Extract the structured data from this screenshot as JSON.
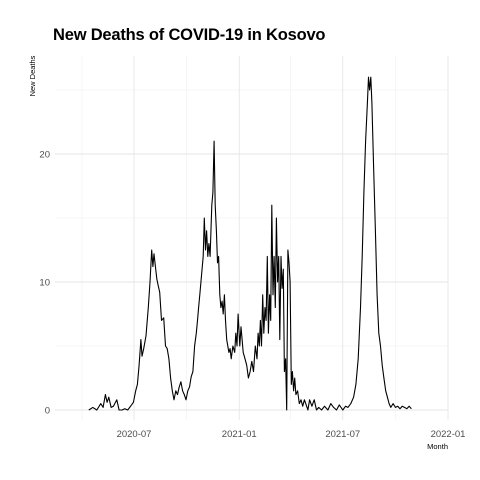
{
  "chart_data": {
    "type": "line",
    "title": "New Deaths of COVID-19 in Kosovo",
    "xlabel": "Month",
    "ylabel": "New Deaths",
    "xlim": [
      "2020-04-01",
      "2022-01-01"
    ],
    "ylim": [
      0,
      26
    ],
    "x_ticks": [
      "2020-07",
      "2021-01",
      "2021-07",
      "2022-01"
    ],
    "y_ticks": [
      0,
      10,
      20
    ],
    "grid": true,
    "line_color": "#000000",
    "series": [
      {
        "points": [
          [
            "2020-04-13",
            0
          ],
          [
            "2020-04-20",
            0.2
          ],
          [
            "2020-04-27",
            0
          ],
          [
            "2020-05-04",
            0.5
          ],
          [
            "2020-05-08",
            0.2
          ],
          [
            "2020-05-12",
            1.2
          ],
          [
            "2020-05-15",
            0.6
          ],
          [
            "2020-05-18",
            1
          ],
          [
            "2020-05-22",
            0.2
          ],
          [
            "2020-05-26",
            0.3
          ],
          [
            "2020-06-01",
            0.8
          ],
          [
            "2020-06-05",
            0
          ],
          [
            "2020-06-10",
            0
          ],
          [
            "2020-06-15",
            0.1
          ],
          [
            "2020-06-20",
            0
          ],
          [
            "2020-06-25",
            0.3
          ],
          [
            "2020-06-30",
            0.6
          ],
          [
            "2020-07-04",
            1.5
          ],
          [
            "2020-07-07",
            2
          ],
          [
            "2020-07-10",
            3.5
          ],
          [
            "2020-07-13",
            5.5
          ],
          [
            "2020-07-15",
            4.2
          ],
          [
            "2020-07-18",
            4.8
          ],
          [
            "2020-07-22",
            5.8
          ],
          [
            "2020-07-26",
            8
          ],
          [
            "2020-07-29",
            10
          ],
          [
            "2020-08-01",
            12.5
          ],
          [
            "2020-08-03",
            11.2
          ],
          [
            "2020-08-05",
            12.2
          ],
          [
            "2020-08-08",
            11
          ],
          [
            "2020-08-10",
            10.2
          ],
          [
            "2020-08-12",
            9.8
          ],
          [
            "2020-08-15",
            9.2
          ],
          [
            "2020-08-18",
            7
          ],
          [
            "2020-08-22",
            7.2
          ],
          [
            "2020-08-25",
            5
          ],
          [
            "2020-08-28",
            4.8
          ],
          [
            "2020-08-31",
            4
          ],
          [
            "2020-09-03",
            2.5
          ],
          [
            "2020-09-06",
            1.5
          ],
          [
            "2020-09-09",
            0.8
          ],
          [
            "2020-09-12",
            1.5
          ],
          [
            "2020-09-15",
            1.2
          ],
          [
            "2020-09-18",
            1.8
          ],
          [
            "2020-09-21",
            2.2
          ],
          [
            "2020-09-24",
            1.5
          ],
          [
            "2020-09-27",
            1.2
          ],
          [
            "2020-09-30",
            0.8
          ],
          [
            "2020-10-03",
            1.5
          ],
          [
            "2020-10-06",
            1.8
          ],
          [
            "2020-10-09",
            2.6
          ],
          [
            "2020-10-12",
            3
          ],
          [
            "2020-10-15",
            5
          ],
          [
            "2020-10-18",
            6
          ],
          [
            "2020-10-20",
            7
          ],
          [
            "2020-10-22",
            8
          ],
          [
            "2020-10-24",
            9
          ],
          [
            "2020-10-27",
            10.5
          ],
          [
            "2020-10-30",
            12
          ],
          [
            "2020-11-01",
            15
          ],
          [
            "2020-11-03",
            12.5
          ],
          [
            "2020-11-05",
            14
          ],
          [
            "2020-11-07",
            12
          ],
          [
            "2020-11-09",
            13
          ],
          [
            "2020-11-11",
            12
          ],
          [
            "2020-11-14",
            16
          ],
          [
            "2020-11-16",
            17
          ],
          [
            "2020-11-18",
            21
          ],
          [
            "2020-11-20",
            16
          ],
          [
            "2020-11-22",
            14
          ],
          [
            "2020-11-24",
            11.5
          ],
          [
            "2020-11-26",
            12
          ],
          [
            "2020-11-28",
            9
          ],
          [
            "2020-11-30",
            8
          ],
          [
            "2020-12-02",
            8.5
          ],
          [
            "2020-12-04",
            7.5
          ],
          [
            "2020-12-06",
            9
          ],
          [
            "2020-12-08",
            7
          ],
          [
            "2020-12-10",
            5.5
          ],
          [
            "2020-12-12",
            5
          ],
          [
            "2020-12-14",
            4.5
          ],
          [
            "2020-12-16",
            4.8
          ],
          [
            "2020-12-18",
            4
          ],
          [
            "2020-12-21",
            5
          ],
          [
            "2020-12-24",
            4.5
          ],
          [
            "2020-12-26",
            6
          ],
          [
            "2020-12-28",
            5
          ],
          [
            "2020-12-30",
            7.5
          ],
          [
            "2021-01-02",
            5
          ],
          [
            "2021-01-04",
            6.5
          ],
          [
            "2021-01-06",
            5.5
          ],
          [
            "2021-01-08",
            4.5
          ],
          [
            "2021-01-11",
            4
          ],
          [
            "2021-01-14",
            3.5
          ],
          [
            "2021-01-17",
            2.5
          ],
          [
            "2021-01-20",
            3
          ],
          [
            "2021-01-23",
            3.8
          ],
          [
            "2021-01-26",
            3
          ],
          [
            "2021-01-29",
            5
          ],
          [
            "2021-02-01",
            4
          ],
          [
            "2021-02-03",
            6
          ],
          [
            "2021-02-05",
            5
          ],
          [
            "2021-02-07",
            7
          ],
          [
            "2021-02-09",
            5
          ],
          [
            "2021-02-11",
            9
          ],
          [
            "2021-02-13",
            6
          ],
          [
            "2021-02-15",
            8
          ],
          [
            "2021-02-17",
            7
          ],
          [
            "2021-02-19",
            12
          ],
          [
            "2021-02-21",
            6
          ],
          [
            "2021-02-23",
            9
          ],
          [
            "2021-02-25",
            7
          ],
          [
            "2021-02-27",
            16
          ],
          [
            "2021-03-01",
            9
          ],
          [
            "2021-03-03",
            12
          ],
          [
            "2021-03-05",
            8
          ],
          [
            "2021-03-07",
            15
          ],
          [
            "2021-03-09",
            10
          ],
          [
            "2021-03-11",
            12
          ],
          [
            "2021-03-13",
            5.5
          ],
          [
            "2021-03-15",
            12
          ],
          [
            "2021-03-17",
            9.5
          ],
          [
            "2021-03-19",
            11
          ],
          [
            "2021-03-21",
            3
          ],
          [
            "2021-03-23",
            4
          ],
          [
            "2021-03-25",
            0
          ],
          [
            "2021-03-27",
            12.5
          ],
          [
            "2021-03-29",
            11.5
          ],
          [
            "2021-03-31",
            10
          ],
          [
            "2021-04-02",
            2
          ],
          [
            "2021-04-04",
            3
          ],
          [
            "2021-04-06",
            1.5
          ],
          [
            "2021-04-08",
            2.5
          ],
          [
            "2021-04-10",
            1.2
          ],
          [
            "2021-04-13",
            1.5
          ],
          [
            "2021-04-16",
            0.5
          ],
          [
            "2021-04-19",
            0.8
          ],
          [
            "2021-04-22",
            0.3
          ],
          [
            "2021-04-25",
            0.8
          ],
          [
            "2021-04-28",
            0.4
          ],
          [
            "2021-05-01",
            0
          ],
          [
            "2021-05-04",
            0.8
          ],
          [
            "2021-05-08",
            0.3
          ],
          [
            "2021-05-12",
            0.8
          ],
          [
            "2021-05-16",
            0
          ],
          [
            "2021-05-20",
            0.2
          ],
          [
            "2021-05-25",
            0
          ],
          [
            "2021-05-30",
            0.3
          ],
          [
            "2021-06-05",
            0
          ],
          [
            "2021-06-10",
            0.5
          ],
          [
            "2021-06-15",
            0.2
          ],
          [
            "2021-06-20",
            0
          ],
          [
            "2021-06-25",
            0.4
          ],
          [
            "2021-07-01",
            0
          ],
          [
            "2021-07-06",
            0.3
          ],
          [
            "2021-07-10",
            0.2
          ],
          [
            "2021-07-15",
            0.5
          ],
          [
            "2021-07-20",
            1
          ],
          [
            "2021-07-24",
            2
          ],
          [
            "2021-07-28",
            4
          ],
          [
            "2021-08-01",
            8
          ],
          [
            "2021-08-04",
            12
          ],
          [
            "2021-08-07",
            17
          ],
          [
            "2021-08-10",
            21
          ],
          [
            "2021-08-13",
            24
          ],
          [
            "2021-08-15",
            26
          ],
          [
            "2021-08-17",
            25
          ],
          [
            "2021-08-19",
            26
          ],
          [
            "2021-08-21",
            24
          ],
          [
            "2021-08-24",
            19
          ],
          [
            "2021-08-27",
            14
          ],
          [
            "2021-08-30",
            9
          ],
          [
            "2021-09-02",
            6
          ],
          [
            "2021-09-05",
            5
          ],
          [
            "2021-09-08",
            3.5
          ],
          [
            "2021-09-11",
            2.5
          ],
          [
            "2021-09-14",
            1.5
          ],
          [
            "2021-09-17",
            1
          ],
          [
            "2021-09-20",
            0.5
          ],
          [
            "2021-09-23",
            0.2
          ],
          [
            "2021-09-27",
            0.5
          ],
          [
            "2021-10-01",
            0.2
          ],
          [
            "2021-10-05",
            0.3
          ],
          [
            "2021-10-09",
            0.1
          ],
          [
            "2021-10-13",
            0.3
          ],
          [
            "2021-10-17",
            0.2
          ],
          [
            "2021-10-21",
            0.1
          ],
          [
            "2021-10-25",
            0.3
          ],
          [
            "2021-10-29",
            0.1
          ]
        ]
      }
    ]
  }
}
